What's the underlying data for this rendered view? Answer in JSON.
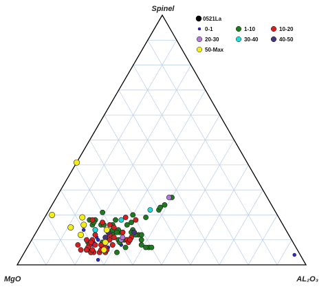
{
  "chart_data": {
    "type": "scatter",
    "subtype": "ternary",
    "vertices": {
      "top": "Spinel",
      "left": "MgO",
      "right": "AL₂O₃"
    },
    "grid": {
      "divisions": 10,
      "color": "#b9cde6"
    },
    "legend": {
      "placement": "top-right",
      "title": "0521La",
      "title_color": "#000000",
      "entries": [
        {
          "label": "0-1",
          "color": "#2a2ae0"
        },
        {
          "label": "1-10",
          "color": "#1e7a1e"
        },
        {
          "label": "10-20",
          "color": "#d42020"
        },
        {
          "label": "20-30",
          "color": "#b07ad8"
        },
        {
          "label": "30-40",
          "color": "#22d8d8"
        },
        {
          "label": "40-50",
          "color": "#45357a"
        },
        {
          "label": "50-Max",
          "color": "#f2ec1a"
        }
      ]
    },
    "series": [
      {
        "name": "0-1",
        "points": [
          [
            0.09,
            0.69,
            0.22
          ],
          [
            0.08,
            0.7,
            0.22
          ],
          [
            0.11,
            0.67,
            0.22
          ],
          [
            0.02,
            0.71,
            0.27
          ],
          [
            0.12,
            0.67,
            0.21
          ],
          [
            0.07,
            0.66,
            0.27
          ],
          [
            0.13,
            0.58,
            0.29
          ],
          [
            0.14,
            0.7,
            0.16
          ],
          [
            0.11,
            0.64,
            0.25
          ],
          [
            0.04,
            0.02,
            0.94
          ],
          [
            0.08,
            0.75,
            0.17
          ],
          [
            0.06,
            0.73,
            0.21
          ],
          [
            0.08,
            0.6,
            0.32
          ],
          [
            0.1,
            0.67,
            0.23
          ],
          [
            0.07,
            0.65,
            0.28
          ]
        ]
      },
      {
        "name": "1-10",
        "points": [
          [
            0.2,
            0.5,
            0.3
          ],
          [
            0.24,
            0.37,
            0.39
          ],
          [
            0.22,
            0.4,
            0.38
          ],
          [
            0.16,
            0.63,
            0.21
          ],
          [
            0.21,
            0.6,
            0.19
          ],
          [
            0.14,
            0.6,
            0.26
          ],
          [
            0.1,
            0.58,
            0.32
          ],
          [
            0.09,
            0.71,
            0.2
          ],
          [
            0.1,
            0.52,
            0.38
          ],
          [
            0.18,
            0.66,
            0.16
          ],
          [
            0.27,
            0.33,
            0.4
          ],
          [
            0.18,
            0.57,
            0.25
          ],
          [
            0.14,
            0.66,
            0.2
          ],
          [
            0.06,
            0.72,
            0.22
          ],
          [
            0.13,
            0.58,
            0.29
          ],
          [
            0.12,
            0.61,
            0.27
          ],
          [
            0.23,
            0.39,
            0.38
          ],
          [
            0.06,
            0.73,
            0.21
          ],
          [
            0.12,
            0.52,
            0.36
          ],
          [
            0.17,
            0.52,
            0.31
          ],
          [
            0.09,
            0.6,
            0.31
          ],
          [
            0.13,
            0.57,
            0.3
          ],
          [
            0.1,
            0.57,
            0.33
          ],
          [
            0.07,
            0.51,
            0.42
          ],
          [
            0.1,
            0.57,
            0.33
          ],
          [
            0.07,
            0.5,
            0.43
          ],
          [
            0.19,
            0.46,
            0.35
          ],
          [
            0.16,
            0.54,
            0.3
          ],
          [
            0.07,
            0.59,
            0.34
          ],
          [
            0.08,
            0.53,
            0.39
          ],
          [
            0.12,
            0.53,
            0.35
          ],
          [
            0.05,
            0.63,
            0.32
          ],
          [
            0.14,
            0.58,
            0.28
          ],
          [
            0.16,
            0.59,
            0.25
          ],
          [
            0.07,
            0.52,
            0.41
          ],
          [
            0.18,
            0.64,
            0.18
          ],
          [
            0.14,
            0.53,
            0.33
          ],
          [
            0.13,
            0.59,
            0.28
          ],
          [
            0.1,
            0.6,
            0.3
          ],
          [
            0.16,
            0.66,
            0.18
          ],
          [
            0.09,
            0.66,
            0.25
          ],
          [
            0.13,
            0.54,
            0.33
          ],
          [
            0.12,
            0.51,
            0.37
          ],
          [
            0.17,
            0.65,
            0.18
          ],
          [
            0.16,
            0.62,
            0.22
          ],
          [
            0.09,
            0.6,
            0.31
          ]
        ]
      },
      {
        "name": "10-20",
        "points": [
          [
            0.1,
            0.57,
            0.33
          ],
          [
            0.13,
            0.57,
            0.3
          ],
          [
            0.08,
            0.67,
            0.25
          ],
          [
            0.05,
            0.72,
            0.23
          ],
          [
            0.1,
            0.69,
            0.21
          ],
          [
            0.1,
            0.56,
            0.34
          ],
          [
            0.05,
            0.71,
            0.24
          ],
          [
            0.18,
            0.65,
            0.17
          ],
          [
            0.08,
            0.75,
            0.17
          ],
          [
            0.08,
            0.71,
            0.21
          ],
          [
            0.05,
            0.67,
            0.28
          ],
          [
            0.11,
            0.61,
            0.28
          ],
          [
            0.12,
            0.62,
            0.26
          ],
          [
            0.05,
            0.72,
            0.23
          ],
          [
            0.06,
            0.75,
            0.19
          ],
          [
            0.06,
            0.66,
            0.28
          ],
          [
            0.11,
            0.55,
            0.34
          ],
          [
            0.09,
            0.7,
            0.21
          ],
          [
            0.18,
            0.5,
            0.32
          ],
          [
            0.09,
            0.57,
            0.34
          ],
          [
            0.1,
            0.71,
            0.19
          ],
          [
            0.05,
            0.69,
            0.26
          ],
          [
            0.11,
            0.64,
            0.25
          ],
          [
            0.12,
            0.67,
            0.21
          ],
          [
            0.17,
            0.62,
            0.21
          ],
          [
            0.06,
            0.73,
            0.21
          ],
          [
            0.08,
            0.63,
            0.29
          ],
          [
            0.07,
            0.72,
            0.21
          ],
          [
            0.06,
            0.73,
            0.21
          ],
          [
            0.19,
            0.53,
            0.28
          ],
          [
            0.16,
            0.6,
            0.24
          ],
          [
            0.1,
            0.63,
            0.27
          ],
          [
            0.06,
            0.66,
            0.28
          ],
          [
            0.06,
            0.71,
            0.23
          ],
          [
            0.15,
            0.59,
            0.26
          ],
          [
            0.08,
            0.63,
            0.29
          ],
          [
            0.06,
            0.68,
            0.26
          ],
          [
            0.07,
            0.66,
            0.27
          ],
          [
            0.08,
            0.69,
            0.23
          ],
          [
            0.1,
            0.56,
            0.34
          ]
        ]
      },
      {
        "name": "20-30",
        "points": [
          [
            0.1,
            0.59,
            0.31
          ],
          [
            0.27,
            0.34,
            0.39
          ],
          [
            0.11,
            0.58,
            0.31
          ]
        ]
      },
      {
        "name": "30-40",
        "points": [
          [
            0.22,
            0.43,
            0.35
          ],
          [
            0.14,
            0.66,
            0.2
          ],
          [
            0.18,
            0.55,
            0.27
          ],
          [
            0.06,
            0.67,
            0.27
          ]
        ]
      },
      {
        "name": "40-50",
        "points": [
          [
            0.13,
            0.53,
            0.34
          ],
          [
            0.11,
            0.64,
            0.25
          ],
          [
            0.13,
            0.62,
            0.25
          ]
        ]
      },
      {
        "name": "50-Max",
        "points": [
          [
            0.2,
            0.78,
            0.02
          ],
          [
            0.41,
            0.59,
            0.0
          ],
          [
            0.12,
            0.72,
            0.16
          ],
          [
            0.06,
            0.67,
            0.27
          ],
          [
            0.16,
            0.69,
            0.15
          ],
          [
            0.19,
            0.68,
            0.13
          ],
          [
            0.09,
            0.65,
            0.26
          ],
          [
            0.15,
            0.74,
            0.11
          ],
          [
            0.14,
            0.62,
            0.24
          ]
        ]
      }
    ]
  }
}
